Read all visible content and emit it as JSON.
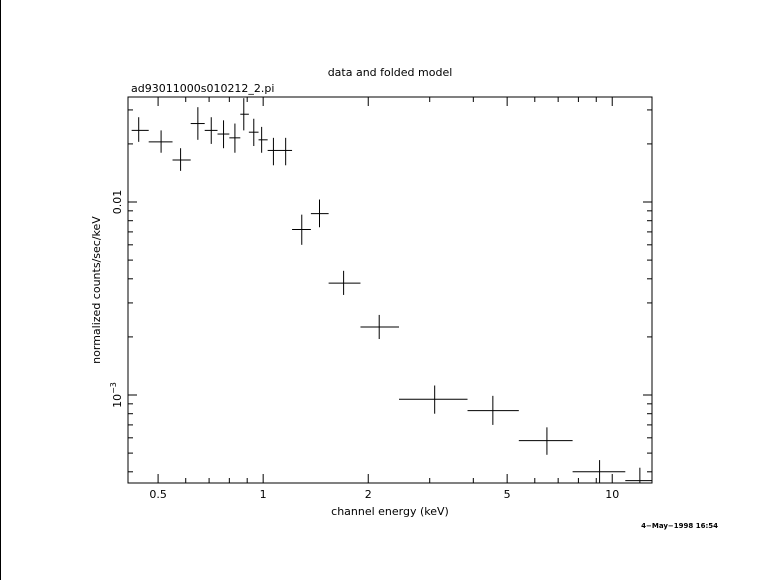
{
  "chart_data": {
    "type": "scatter",
    "title": "data and folded model",
    "subtitle": "ad93011000s010212_2.pi",
    "xlabel": "channel energy (keV)",
    "ylabel": "normalized counts/sec/keV",
    "x_scale": "log",
    "y_scale": "log",
    "xlim": [
      0.41,
      13.0
    ],
    "ylim": [
      0.00035,
      0.035
    ],
    "x_ticks": [
      {
        "value": 0.5,
        "label": "0.5"
      },
      {
        "value": 1,
        "label": "1"
      },
      {
        "value": 2,
        "label": "2"
      },
      {
        "value": 5,
        "label": "5"
      },
      {
        "value": 10,
        "label": "10"
      }
    ],
    "y_ticks": [
      {
        "value": 0.01,
        "label": "0.01",
        "sup": ""
      },
      {
        "value": 0.001,
        "label": "10",
        "sup": "−3"
      }
    ],
    "timestamp": "4−May−1998 16:54",
    "points": [
      {
        "x": 0.44,
        "y": 0.0235,
        "xerr": [
          0.42,
          0.47
        ],
        "yerr": [
          0.0205,
          0.0275
        ]
      },
      {
        "x": 0.51,
        "y": 0.0205,
        "xerr": [
          0.47,
          0.55
        ],
        "yerr": [
          0.018,
          0.0235
        ]
      },
      {
        "x": 0.58,
        "y": 0.0165,
        "xerr": [
          0.55,
          0.62
        ],
        "yerr": [
          0.0145,
          0.019
        ]
      },
      {
        "x": 0.65,
        "y": 0.0255,
        "xerr": [
          0.62,
          0.68
        ],
        "yerr": [
          0.021,
          0.031
        ]
      },
      {
        "x": 0.71,
        "y": 0.0235,
        "xerr": [
          0.68,
          0.74
        ],
        "yerr": [
          0.02,
          0.0275
        ]
      },
      {
        "x": 0.77,
        "y": 0.0225,
        "xerr": [
          0.74,
          0.8
        ],
        "yerr": [
          0.019,
          0.0265
        ]
      },
      {
        "x": 0.83,
        "y": 0.0215,
        "xerr": [
          0.8,
          0.86
        ],
        "yerr": [
          0.018,
          0.0255
        ]
      },
      {
        "x": 0.88,
        "y": 0.0285,
        "xerr": [
          0.86,
          0.91
        ],
        "yerr": [
          0.0235,
          0.0345
        ]
      },
      {
        "x": 0.94,
        "y": 0.023,
        "xerr": [
          0.91,
          0.97
        ],
        "yerr": [
          0.0195,
          0.027
        ]
      },
      {
        "x": 0.99,
        "y": 0.021,
        "xerr": [
          0.97,
          1.03
        ],
        "yerr": [
          0.018,
          0.0245
        ]
      },
      {
        "x": 1.07,
        "y": 0.0185,
        "xerr": [
          1.03,
          1.11
        ],
        "yerr": [
          0.0155,
          0.0215
        ]
      },
      {
        "x": 1.16,
        "y": 0.0185,
        "xerr": [
          1.11,
          1.21
        ],
        "yerr": [
          0.0155,
          0.0215
        ]
      },
      {
        "x": 1.29,
        "y": 0.0072,
        "xerr": [
          1.21,
          1.37
        ],
        "yerr": [
          0.006,
          0.0086
        ]
      },
      {
        "x": 1.45,
        "y": 0.0087,
        "xerr": [
          1.37,
          1.54
        ],
        "yerr": [
          0.0074,
          0.0103
        ]
      },
      {
        "x": 1.7,
        "y": 0.0038,
        "xerr": [
          1.54,
          1.9
        ],
        "yerr": [
          0.0033,
          0.0044
        ]
      },
      {
        "x": 2.15,
        "y": 0.00225,
        "xerr": [
          1.9,
          2.45
        ],
        "yerr": [
          0.00195,
          0.0026
        ]
      },
      {
        "x": 3.1,
        "y": 0.00095,
        "xerr": [
          2.45,
          3.85
        ],
        "yerr": [
          0.0008,
          0.00112
        ]
      },
      {
        "x": 4.55,
        "y": 0.00083,
        "xerr": [
          3.85,
          5.4
        ],
        "yerr": [
          0.0007,
          0.00099
        ]
      },
      {
        "x": 6.5,
        "y": 0.00058,
        "xerr": [
          5.4,
          7.7
        ],
        "yerr": [
          0.00049,
          0.00068
        ]
      },
      {
        "x": 9.2,
        "y": 0.0004,
        "xerr": [
          7.7,
          10.9
        ],
        "yerr": [
          0.00035,
          0.00046
        ]
      },
      {
        "x": 12.0,
        "y": 0.00036,
        "xerr": [
          10.9,
          13.0
        ],
        "yerr": [
          0.00035,
          0.00042
        ]
      }
    ]
  }
}
